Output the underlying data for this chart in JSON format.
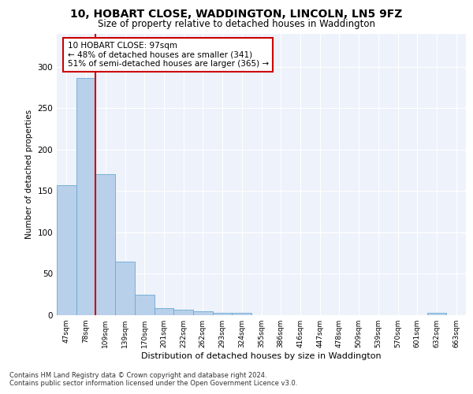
{
  "title_line1": "10, HOBART CLOSE, WADDINGTON, LINCOLN, LN5 9FZ",
  "title_line2": "Size of property relative to detached houses in Waddington",
  "xlabel": "Distribution of detached houses by size in Waddington",
  "ylabel": "Number of detached properties",
  "categories": [
    "47sqm",
    "78sqm",
    "109sqm",
    "139sqm",
    "170sqm",
    "201sqm",
    "232sqm",
    "262sqm",
    "293sqm",
    "324sqm",
    "355sqm",
    "386sqm",
    "416sqm",
    "447sqm",
    "478sqm",
    "509sqm",
    "539sqm",
    "570sqm",
    "601sqm",
    "632sqm",
    "663sqm"
  ],
  "values": [
    157,
    286,
    170,
    65,
    25,
    9,
    7,
    5,
    3,
    3,
    0,
    0,
    0,
    0,
    0,
    0,
    0,
    0,
    0,
    3,
    0
  ],
  "bar_color": "#b8d0ea",
  "bar_edge_color": "#6aaad4",
  "vline_x": 1.5,
  "vline_color": "#cc0000",
  "annotation_title": "10 HOBART CLOSE: 97sqm",
  "annotation_line1": "← 48% of detached houses are smaller (341)",
  "annotation_line2": "51% of semi-detached houses are larger (365) →",
  "annotation_box_color": "#ffffff",
  "annotation_box_edge": "#cc0000",
  "ylim": [
    0,
    340
  ],
  "yticks": [
    0,
    50,
    100,
    150,
    200,
    250,
    300,
    350
  ],
  "background_color": "#eef2fb",
  "grid_color": "#ffffff",
  "footer_line1": "Contains HM Land Registry data © Crown copyright and database right 2024.",
  "footer_line2": "Contains public sector information licensed under the Open Government Licence v3.0."
}
